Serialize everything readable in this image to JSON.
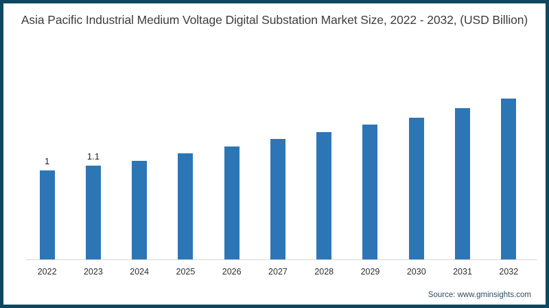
{
  "frame": {
    "border_color": "#0f4760",
    "background": "#ffffff"
  },
  "title": "Asia Pacific Industrial Medium Voltage Digital Substation Market Size, 2022 - 2032, (USD Billion)",
  "source": "Source: www.gminsights.com",
  "chart_data": {
    "type": "bar",
    "title": "Asia Pacific Industrial Medium Voltage Digital Substation Market Size, 2022 - 2032, (USD Billion)",
    "unit": "USD Billion",
    "categories": [
      "2022",
      "2023",
      "2024",
      "2025",
      "2026",
      "2027",
      "2028",
      "2029",
      "2030",
      "2031",
      "2032"
    ],
    "values": [
      1,
      1.1,
      1.2,
      1.35,
      1.5,
      1.65,
      1.8,
      1.95,
      2.1,
      2.3,
      2.5
    ],
    "data_labels": [
      "1",
      "1.1",
      "",
      "",
      "",
      "",
      "",
      "",
      "",
      "",
      ""
    ],
    "xlabel": "",
    "ylabel": "",
    "bar_color": "#2d76b6",
    "axis_color": "#d9d9d9",
    "grid": false,
    "legend": false,
    "y_axis_visible": false
  }
}
